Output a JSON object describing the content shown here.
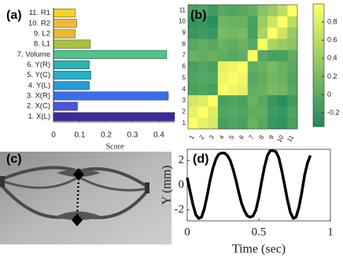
{
  "chart_data": [
    {
      "type": "hbar",
      "panel": "(a)",
      "xlabel": "Score",
      "categories": [
        "11. R1",
        "10. R2",
        "9. L2",
        "8. L1",
        "7. Volume",
        "6. Y(R)",
        "5. Y(C)",
        "4. Y(L)",
        "3. X(R)",
        "2. X(C)",
        "1. X(L)"
      ],
      "values": [
        0.082,
        0.088,
        0.082,
        0.14,
        0.43,
        0.136,
        0.142,
        0.136,
        0.436,
        0.091,
        0.46
      ],
      "colors": [
        "#f5d327",
        "#f0b840",
        "#e8b830",
        "#a6c43a",
        "#4cc48a",
        "#2ab5b5",
        "#26b0c8",
        "#2a9ad8",
        "#3a6ee8",
        "#4a55e0",
        "#3a2aa0"
      ],
      "xlim": [
        0,
        0.46
      ],
      "xticks": [
        0,
        0.1,
        0.2,
        0.3,
        0.4
      ]
    },
    {
      "type": "heatmap",
      "panel": "(b)",
      "labels": [
        1,
        2,
        3,
        4,
        5,
        6,
        7,
        8,
        9,
        10,
        11
      ],
      "matrix": [
        [
          1,
          0.85,
          0.75,
          -0.1,
          -0.05,
          -0.1,
          0.1,
          0,
          -0.2,
          -0.25,
          -0.1
        ],
        [
          0.85,
          1,
          0.8,
          -0.05,
          0,
          -0.05,
          0.05,
          0.05,
          -0.15,
          -0.2,
          -0.05
        ],
        [
          0.75,
          0.8,
          1,
          -0.1,
          -0.05,
          -0.1,
          0.1,
          0,
          -0.2,
          -0.3,
          -0.15
        ],
        [
          -0.1,
          -0.05,
          -0.1,
          1,
          0.9,
          0.85,
          0.05,
          0.1,
          0.2,
          0.15,
          0
        ],
        [
          -0.05,
          0,
          -0.05,
          0.9,
          1,
          0.9,
          0,
          0.05,
          0.15,
          0.1,
          -0.05
        ],
        [
          -0.1,
          -0.05,
          -0.1,
          0.85,
          0.9,
          1,
          0.05,
          0.1,
          0.2,
          0.1,
          0
        ],
        [
          0.1,
          0.05,
          0.1,
          0.05,
          0,
          0.05,
          1,
          0,
          -0.1,
          -0.1,
          0.05
        ],
        [
          0,
          0.05,
          0,
          0.1,
          0.05,
          0.1,
          0,
          1,
          0.5,
          0.4,
          0.3
        ],
        [
          -0.2,
          -0.15,
          -0.2,
          0.2,
          0.15,
          0.2,
          -0.1,
          0.5,
          1,
          0.7,
          0.4
        ],
        [
          -0.25,
          -0.2,
          -0.3,
          0.15,
          0.1,
          0.1,
          -0.1,
          0.4,
          0.7,
          1,
          0.6
        ],
        [
          -0.1,
          -0.05,
          -0.15,
          0,
          -0.05,
          0,
          0.05,
          0.3,
          0.4,
          0.6,
          1
        ]
      ],
      "colormap": [
        "#1f8a5f",
        "#ffff66"
      ],
      "clim": [
        -0.35,
        1
      ],
      "cticks": [
        -0.2,
        0,
        0.2,
        0.4,
        0.6,
        0.8
      ]
    },
    {
      "type": "image",
      "panel": "(c)"
    },
    {
      "type": "line",
      "panel": "(d)",
      "xlabel": "Time (sec)",
      "ylabel": "Y (mm)",
      "color": "#000000",
      "x": [
        0,
        0.02,
        0.04,
        0.06,
        0.08,
        0.1,
        0.12,
        0.14,
        0.16,
        0.18,
        0.2,
        0.22,
        0.24,
        0.26,
        0.28,
        0.3,
        0.32,
        0.34,
        0.36,
        0.38,
        0.4,
        0.42,
        0.44,
        0.46,
        0.48,
        0.5,
        0.52,
        0.54,
        0.56,
        0.58,
        0.6,
        0.62,
        0.64,
        0.66,
        0.68,
        0.7,
        0.72,
        0.74,
        0.76,
        0.78,
        0.8,
        0.82,
        0.84,
        0.86
      ],
      "y": [
        0.6,
        -0.5,
        -1.6,
        -2.4,
        -2.7,
        -2.6,
        -1.9,
        -0.8,
        0.4,
        1.4,
        2.1,
        2.5,
        2.6,
        2.6,
        2.4,
        2.0,
        1.3,
        0.4,
        -0.6,
        -1.5,
        -2.1,
        -2.5,
        -2.6,
        -2.5,
        -2.0,
        -1.0,
        0.3,
        1.5,
        2.4,
        2.8,
        2.8,
        2.7,
        2.2,
        1.2,
        0,
        -1.2,
        -2.2,
        -2.7,
        -2.6,
        -1.8,
        -0.6,
        0.8,
        1.8,
        2.4
      ],
      "xlim": [
        0,
        1
      ],
      "xticks": [
        0,
        0.5,
        1
      ],
      "ylim": [
        -2.9,
        2.9
      ],
      "yticks": [
        -2,
        0,
        2
      ]
    }
  ]
}
